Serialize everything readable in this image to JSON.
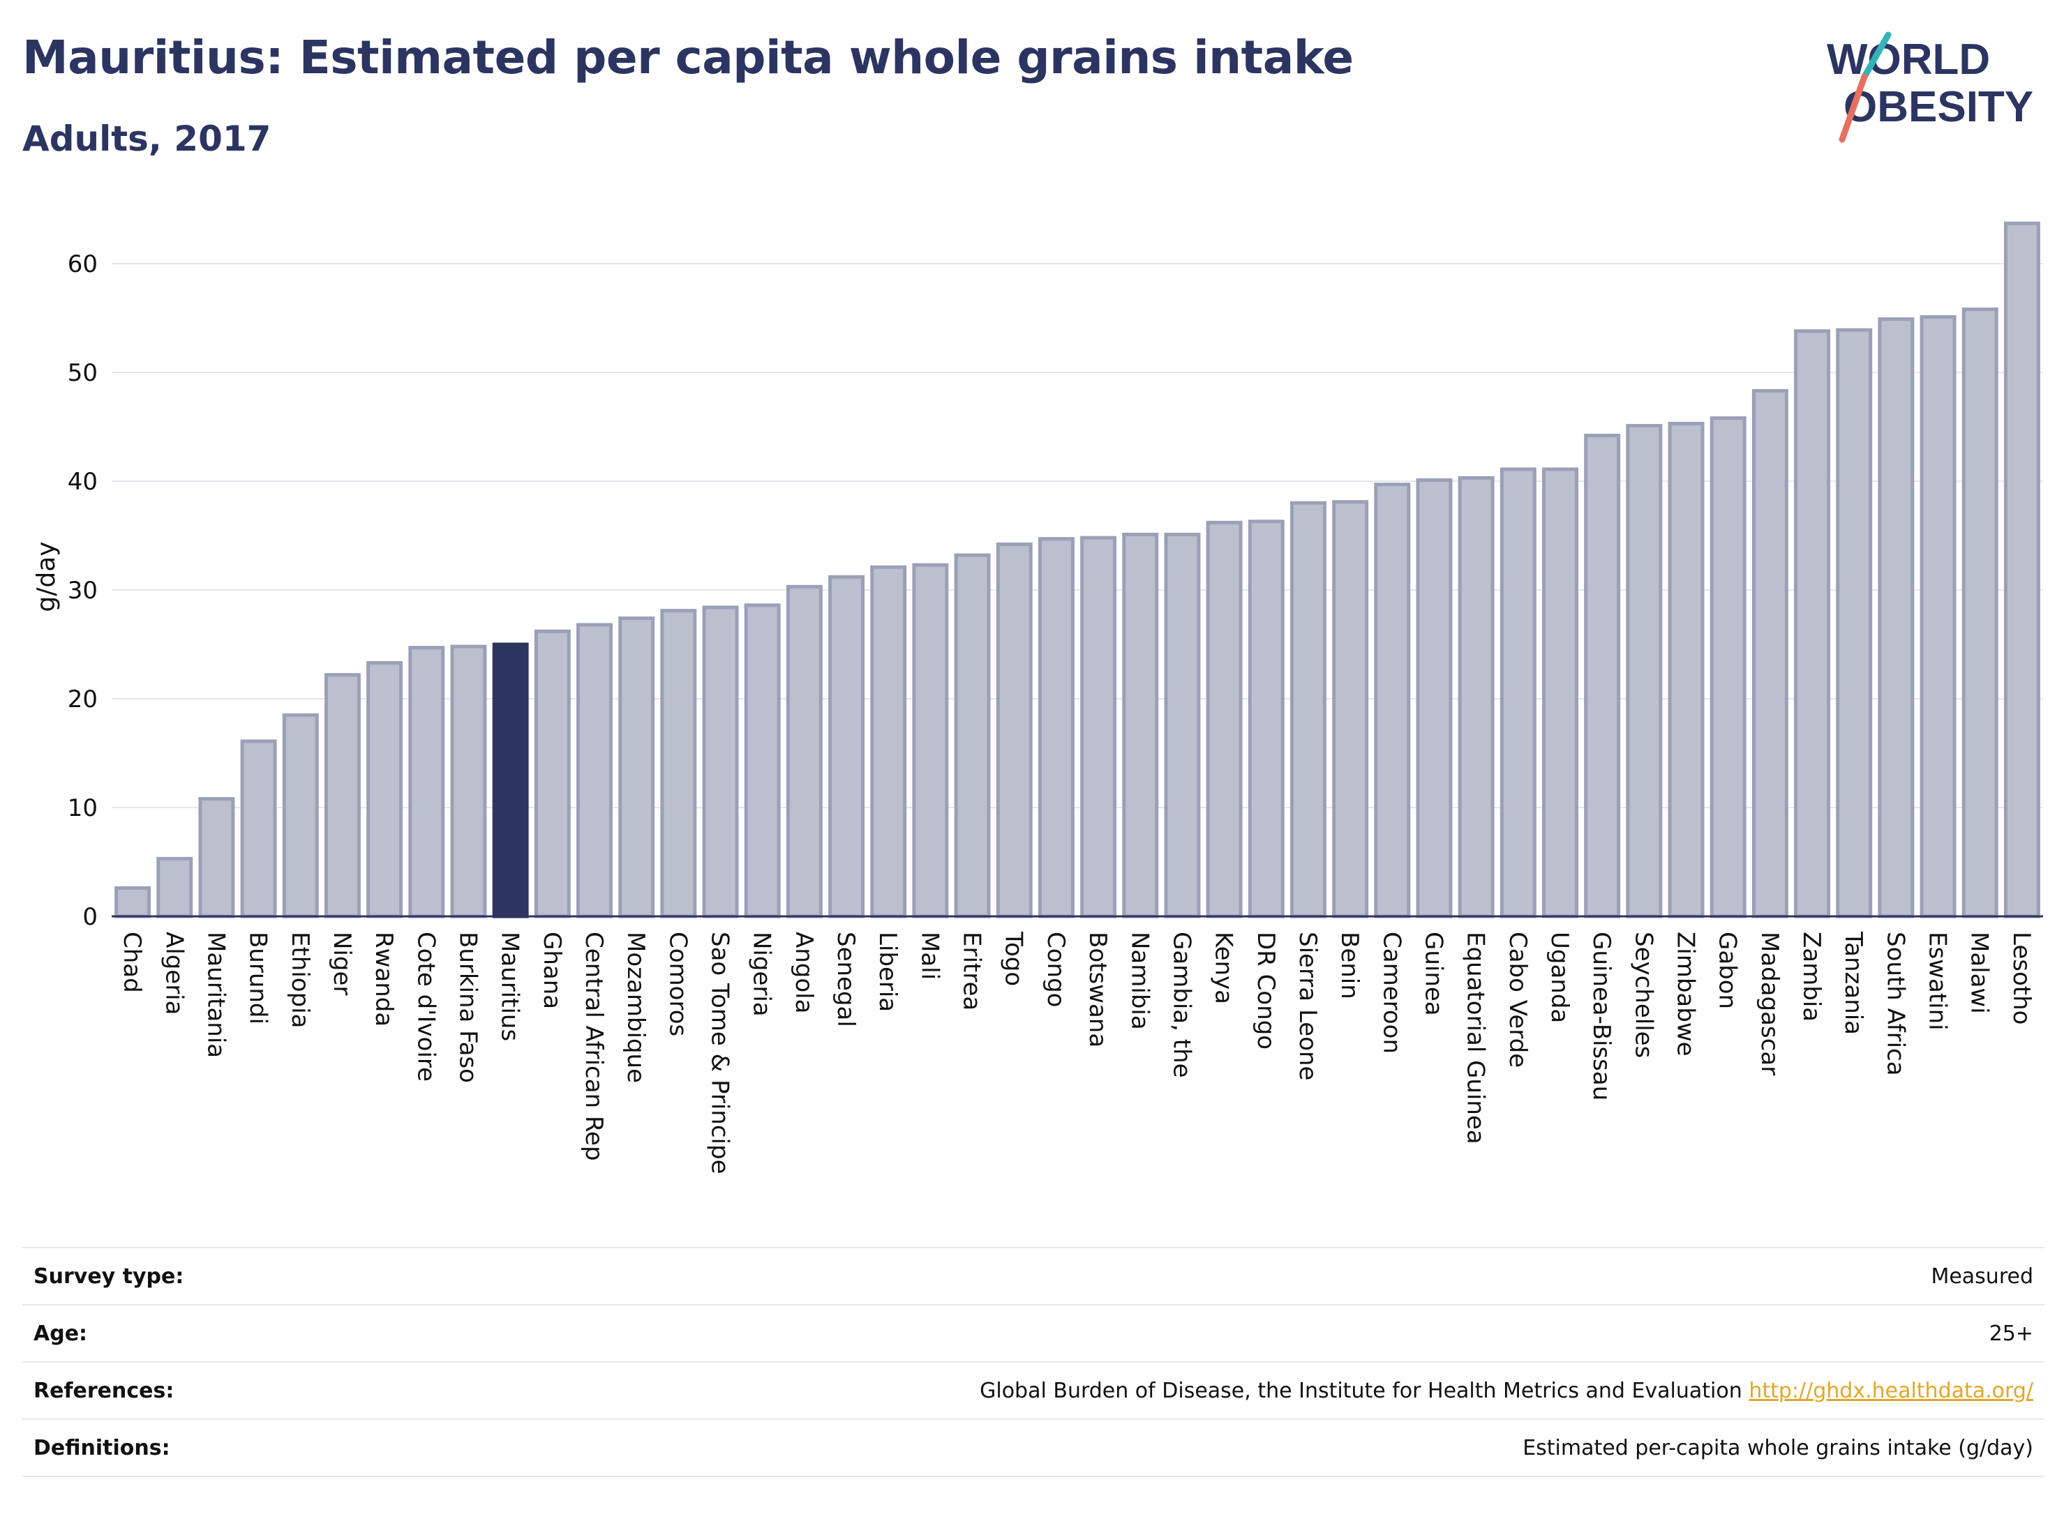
{
  "title": "Mauritius: Estimated per capita whole grains intake",
  "subtitle": "Adults, 2017",
  "logo": {
    "line1": "WORLD",
    "line2": "OBESITY"
  },
  "colors": {
    "bar": "#bcc0ce",
    "bar_edge": "#9aa0b6",
    "highlight": "#2c3561",
    "accent_teal": "#35b3b8",
    "accent_coral": "#e6705f"
  },
  "chart_data": {
    "type": "bar",
    "ylabel": "g/day",
    "ylim": [
      0,
      65
    ],
    "yticks": [
      0,
      10,
      20,
      30,
      40,
      50,
      60
    ],
    "highlight": "Mauritius",
    "grid": true,
    "categories": [
      "Chad",
      "Algeria",
      "Mauritania",
      "Burundi",
      "Ethiopia",
      "Niger",
      "Rwanda",
      "Cote d'Ivoire",
      "Burkina Faso",
      "Mauritius",
      "Ghana",
      "Central African Rep",
      "Mozambique",
      "Comoros",
      "Sao Tome & Principe",
      "Nigeria",
      "Angola",
      "Senegal",
      "Liberia",
      "Mali",
      "Eritrea",
      "Togo",
      "Congo",
      "Botswana",
      "Namibia",
      "Gambia, the",
      "Kenya",
      "DR Congo",
      "Sierra Leone",
      "Benin",
      "Cameroon",
      "Guinea",
      "Equatorial Guinea",
      "Cabo Verde",
      "Uganda",
      "Guinea-Bissau",
      "Seychelles",
      "Zimbabwe",
      "Gabon",
      "Madagascar",
      "Zambia",
      "Tanzania",
      "South Africa",
      "Eswatini",
      "Malawi",
      "Lesotho"
    ],
    "values": [
      2.6,
      5.3,
      10.8,
      16.1,
      18.5,
      22.2,
      23.3,
      24.7,
      24.8,
      25.0,
      26.2,
      26.8,
      27.4,
      28.1,
      28.4,
      28.6,
      30.3,
      31.2,
      32.1,
      32.3,
      33.2,
      34.2,
      34.7,
      34.8,
      35.1,
      35.1,
      36.2,
      36.3,
      38.0,
      38.1,
      39.7,
      40.1,
      40.3,
      41.1,
      41.1,
      44.2,
      45.1,
      45.3,
      45.8,
      48.3,
      53.8,
      53.9,
      54.9,
      55.1,
      55.8,
      63.7
    ]
  },
  "info": [
    {
      "key": "Survey type:",
      "value": "Measured"
    },
    {
      "key": "Age:",
      "value": "25+"
    },
    {
      "key": "References:",
      "value": "Global Burden of Disease, the Institute for Health Metrics and Evaluation",
      "link": "http://ghdx.healthdata.org/"
    },
    {
      "key": "Definitions:",
      "value": "Estimated per-capita whole grains intake (g/day)"
    }
  ]
}
